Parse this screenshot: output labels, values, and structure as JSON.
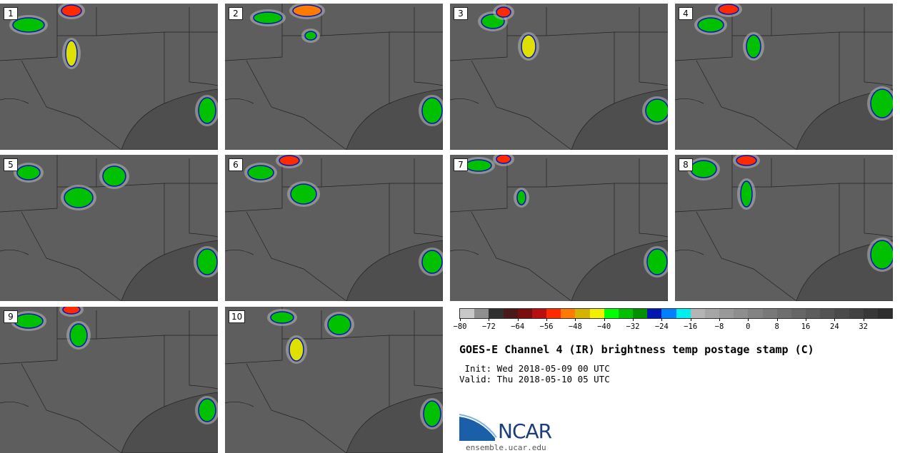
{
  "panels": [
    {
      "label": "1"
    },
    {
      "label": "2"
    },
    {
      "label": "3"
    },
    {
      "label": "4"
    },
    {
      "label": "5"
    },
    {
      "label": "6"
    },
    {
      "label": "7"
    },
    {
      "label": "8"
    },
    {
      "label": "9"
    },
    {
      "label": "10"
    }
  ],
  "colorbar": {
    "colors": [
      "#c8c8c8",
      "#8f8f8f",
      "#303030",
      "#4a1a1a",
      "#7a0d0d",
      "#b81010",
      "#ff2a00",
      "#ff7b00",
      "#d4b400",
      "#f0f000",
      "#00ff00",
      "#00c000",
      "#009000",
      "#0018b0",
      "#0080ff",
      "#00eeee",
      "#b4b4b4",
      "#a6a6a6",
      "#999999",
      "#8e8e8e",
      "#838383",
      "#797979",
      "#6f6f6f",
      "#666666",
      "#5d5d5d",
      "#545454",
      "#4b4b4b",
      "#424242",
      "#383838",
      "#2e2e2e"
    ],
    "ticks": [
      "−80",
      "−72",
      "−64",
      "−56",
      "−48",
      "−40",
      "−32",
      "−24",
      "−16",
      "−8",
      "0",
      "8",
      "16",
      "24",
      "32"
    ]
  },
  "title": "GOES-E Channel 4 (IR) brightness temp postage stamp (C)",
  "init_text": " Init: Wed 2018-05-09 00 UTC",
  "valid_text": "Valid: Thu 2018-05-10 05 UTC",
  "logo_text": "NCAR",
  "site_text": "ensemble.ucar.edu"
}
